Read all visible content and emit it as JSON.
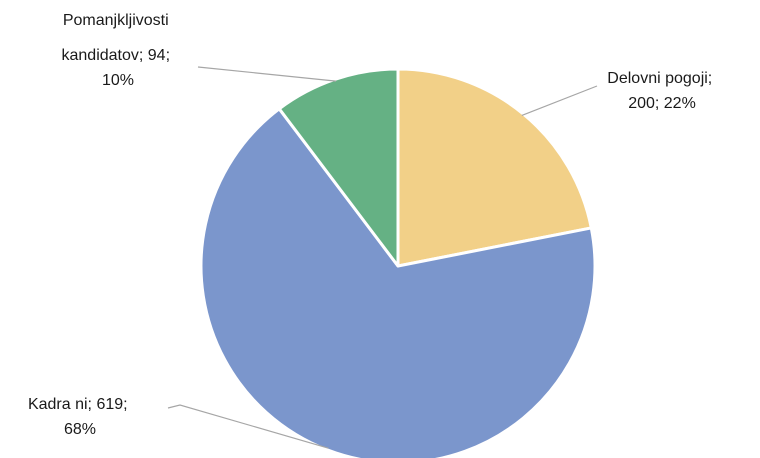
{
  "chart_data": {
    "type": "pie",
    "title": "",
    "slices": [
      {
        "label": "Delovni pogoji",
        "value": 200,
        "percent": "22%",
        "color": "#f2d088",
        "label_lines": [
          "Delovni pogoji;",
          "200; 22%"
        ]
      },
      {
        "label": "Kadra ni",
        "value": 619,
        "percent": "68%",
        "color": "#7b96cc",
        "label_lines": [
          "Kadra ni; 619;",
          "68%"
        ]
      },
      {
        "label": "Pomanjkljivosti kandidatov",
        "value": 94,
        "percent": "10%",
        "color": "#65b184",
        "label_lines": [
          "Pomanjkljivosti",
          "kandidatov; 94;",
          "10%"
        ]
      }
    ]
  }
}
